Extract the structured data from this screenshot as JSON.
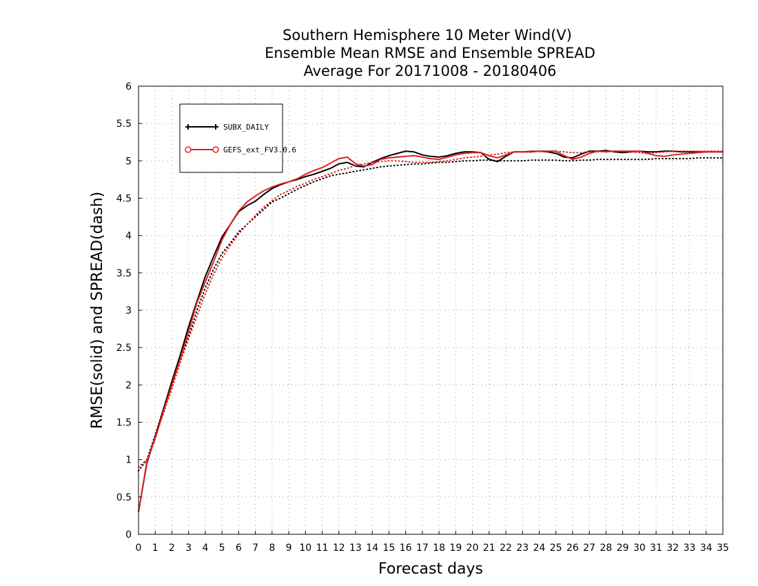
{
  "chart_data": {
    "type": "line",
    "title_lines": [
      "Southern Hemisphere 10 Meter Wind(V)",
      "Ensemble Mean RMSE and Ensemble SPREAD",
      "Average For 20171008 - 20180406"
    ],
    "xlabel": "Forecast days",
    "ylabel": "RMSE(solid) and SPREAD(dash)",
    "xlim": [
      0,
      35
    ],
    "ylim": [
      0,
      6
    ],
    "xticks": [
      0,
      1,
      2,
      3,
      4,
      5,
      6,
      7,
      8,
      9,
      10,
      11,
      12,
      13,
      14,
      15,
      16,
      17,
      18,
      19,
      20,
      21,
      22,
      23,
      24,
      25,
      26,
      27,
      28,
      29,
      30,
      31,
      32,
      33,
      34,
      35
    ],
    "yticks": [
      0,
      0.5,
      1,
      1.5,
      2,
      2.5,
      3,
      3.5,
      4,
      4.5,
      5,
      5.5,
      6
    ],
    "ytick_labels": [
      "0",
      "0.5",
      "1",
      "1.5",
      "2",
      "2.5",
      "3",
      "3.5",
      "4",
      "4.5",
      "5",
      "5.5",
      "6"
    ],
    "grid": true,
    "legend_placement": "top-left",
    "series": [
      {
        "name": "SUBX_DAILY",
        "color": "#000000",
        "marker": "plus",
        "x": [
          0,
          0.5,
          1,
          1.5,
          2,
          2.5,
          3,
          3.5,
          4,
          4.5,
          5,
          5.5,
          6,
          6.5,
          7,
          7.5,
          8,
          8.5,
          9,
          9.5,
          10,
          10.5,
          11,
          11.5,
          12,
          12.5,
          13,
          13.5,
          14,
          14.5,
          15,
          15.5,
          16,
          16.5,
          17,
          17.5,
          18,
          18.5,
          19,
          19.5,
          20,
          20.5,
          21,
          21.5,
          22,
          22.5,
          23,
          23.5,
          24,
          24.5,
          25,
          25.5,
          26,
          26.5,
          27,
          27.5,
          28,
          28.5,
          29,
          29.5,
          30,
          30.5,
          31,
          31.5,
          32,
          32.5,
          33,
          33.5,
          34,
          34.5,
          35
        ],
        "rmse": [
          0.3,
          0.95,
          1.3,
          1.68,
          2.05,
          2.4,
          2.78,
          3.12,
          3.45,
          3.72,
          3.98,
          4.15,
          4.32,
          4.4,
          4.46,
          4.55,
          4.63,
          4.68,
          4.72,
          4.75,
          4.79,
          4.82,
          4.86,
          4.9,
          4.96,
          4.98,
          4.93,
          4.92,
          4.98,
          5.03,
          5.07,
          5.1,
          5.13,
          5.12,
          5.08,
          5.06,
          5.05,
          5.07,
          5.1,
          5.12,
          5.12,
          5.11,
          5.02,
          4.99,
          5.06,
          5.12,
          5.12,
          5.12,
          5.13,
          5.12,
          5.1,
          5.05,
          5.04,
          5.09,
          5.13,
          5.13,
          5.14,
          5.12,
          5.11,
          5.12,
          5.13,
          5.12,
          5.12,
          5.13,
          5.13,
          5.12,
          5.12,
          5.12,
          5.12,
          5.12,
          5.12
        ],
        "spread": [
          0.85,
          1.0,
          1.33,
          1.68,
          2.0,
          2.35,
          2.65,
          3.0,
          3.3,
          3.55,
          3.76,
          3.9,
          4.05,
          4.15,
          4.25,
          4.35,
          4.45,
          4.5,
          4.56,
          4.62,
          4.67,
          4.72,
          4.76,
          4.8,
          4.82,
          4.84,
          4.86,
          4.88,
          4.9,
          4.92,
          4.93,
          4.94,
          4.95,
          4.96,
          4.96,
          4.97,
          4.98,
          4.98,
          4.99,
          5.0,
          5.0,
          5.01,
          5.01,
          5.0,
          5.0,
          5.0,
          5.0,
          5.01,
          5.01,
          5.01,
          5.01,
          5.0,
          5.0,
          5.01,
          5.01,
          5.02,
          5.02,
          5.02,
          5.02,
          5.02,
          5.02,
          5.02,
          5.03,
          5.03,
          5.03,
          5.03,
          5.03,
          5.04,
          5.04,
          5.04,
          5.04
        ]
      },
      {
        "name": "GEFS_ext_FV3.0.6",
        "color": "#e02020",
        "marker": "circle",
        "x": [
          0,
          0.5,
          1,
          1.5,
          2,
          2.5,
          3,
          3.5,
          4,
          4.5,
          5,
          5.5,
          6,
          6.5,
          7,
          7.5,
          8,
          8.5,
          9,
          9.5,
          10,
          10.5,
          11,
          11.5,
          12,
          12.5,
          13,
          13.5,
          14,
          14.5,
          15,
          15.5,
          16,
          16.5,
          17,
          17.5,
          18,
          18.5,
          19,
          19.5,
          20,
          20.5,
          21,
          21.5,
          22,
          22.5,
          23,
          23.5,
          24,
          24.5,
          25,
          25.5,
          26,
          26.5,
          27,
          27.5,
          28,
          28.5,
          29,
          29.5,
          30,
          30.5,
          31,
          31.5,
          32,
          32.5,
          33,
          33.5,
          34,
          34.5,
          35
        ],
        "rmse": [
          0.3,
          0.97,
          1.28,
          1.65,
          2.0,
          2.35,
          2.72,
          3.1,
          3.38,
          3.65,
          3.94,
          4.15,
          4.33,
          4.45,
          4.53,
          4.6,
          4.65,
          4.69,
          4.72,
          4.76,
          4.82,
          4.87,
          4.91,
          4.97,
          5.03,
          5.05,
          4.96,
          4.93,
          4.95,
          5.02,
          5.04,
          5.05,
          5.06,
          5.07,
          5.05,
          5.03,
          5.02,
          5.05,
          5.08,
          5.1,
          5.11,
          5.11,
          5.07,
          5.04,
          5.08,
          5.12,
          5.12,
          5.13,
          5.13,
          5.13,
          5.13,
          5.07,
          5.02,
          5.05,
          5.1,
          5.13,
          5.12,
          5.13,
          5.13,
          5.13,
          5.13,
          5.1,
          5.07,
          5.06,
          5.08,
          5.09,
          5.1,
          5.11,
          5.12,
          5.12,
          5.12
        ],
        "spread": [
          0.9,
          1.0,
          1.3,
          1.62,
          1.95,
          2.3,
          2.62,
          2.92,
          3.22,
          3.48,
          3.7,
          3.87,
          4.02,
          4.15,
          4.27,
          4.38,
          4.47,
          4.55,
          4.6,
          4.66,
          4.7,
          4.75,
          4.79,
          4.83,
          4.87,
          4.9,
          4.94,
          4.96,
          4.98,
          4.99,
          5.0,
          5.0,
          4.99,
          4.98,
          4.98,
          4.98,
          4.99,
          5.0,
          5.02,
          5.04,
          5.05,
          5.06,
          5.08,
          5.09,
          5.11,
          5.12,
          5.12,
          5.12,
          5.13,
          5.13,
          5.13,
          5.12,
          5.11,
          5.11,
          5.12,
          5.12,
          5.13,
          5.13,
          5.13,
          5.12,
          5.11,
          5.1,
          5.11,
          5.12,
          5.13,
          5.13,
          5.13,
          5.13,
          5.13,
          5.13,
          5.13
        ]
      }
    ],
    "legend": [
      {
        "label": "SUBX_DAILY",
        "color": "#000000",
        "marker": "plus"
      },
      {
        "label": "GEFS_ext_FV3.0.6",
        "color": "#e02020",
        "marker": "circle"
      }
    ]
  }
}
